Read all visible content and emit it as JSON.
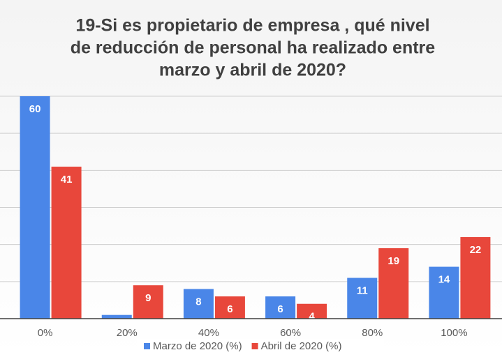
{
  "chart_data": {
    "type": "bar",
    "title": [
      "19-Si es propietario de empresa , qué nivel",
      "de reducción de personal ha realizado entre",
      "marzo y abril de 2020?"
    ],
    "categories": [
      "0%",
      "20%",
      "40%",
      "60%",
      "80%",
      "100%"
    ],
    "series": [
      {
        "name": "Marzo de 2020 (%)",
        "color": "#4a86e8",
        "values": [
          60,
          1,
          8,
          6,
          11,
          14
        ]
      },
      {
        "name": "Abril de 2020 (%)",
        "color": "#e8473b",
        "values": [
          41,
          9,
          6,
          4,
          19,
          22
        ]
      }
    ],
    "ylim": [
      0,
      60
    ],
    "yticks": [
      0,
      10,
      20,
      30,
      40,
      50,
      60
    ],
    "grid": true,
    "legend": "bottom"
  }
}
